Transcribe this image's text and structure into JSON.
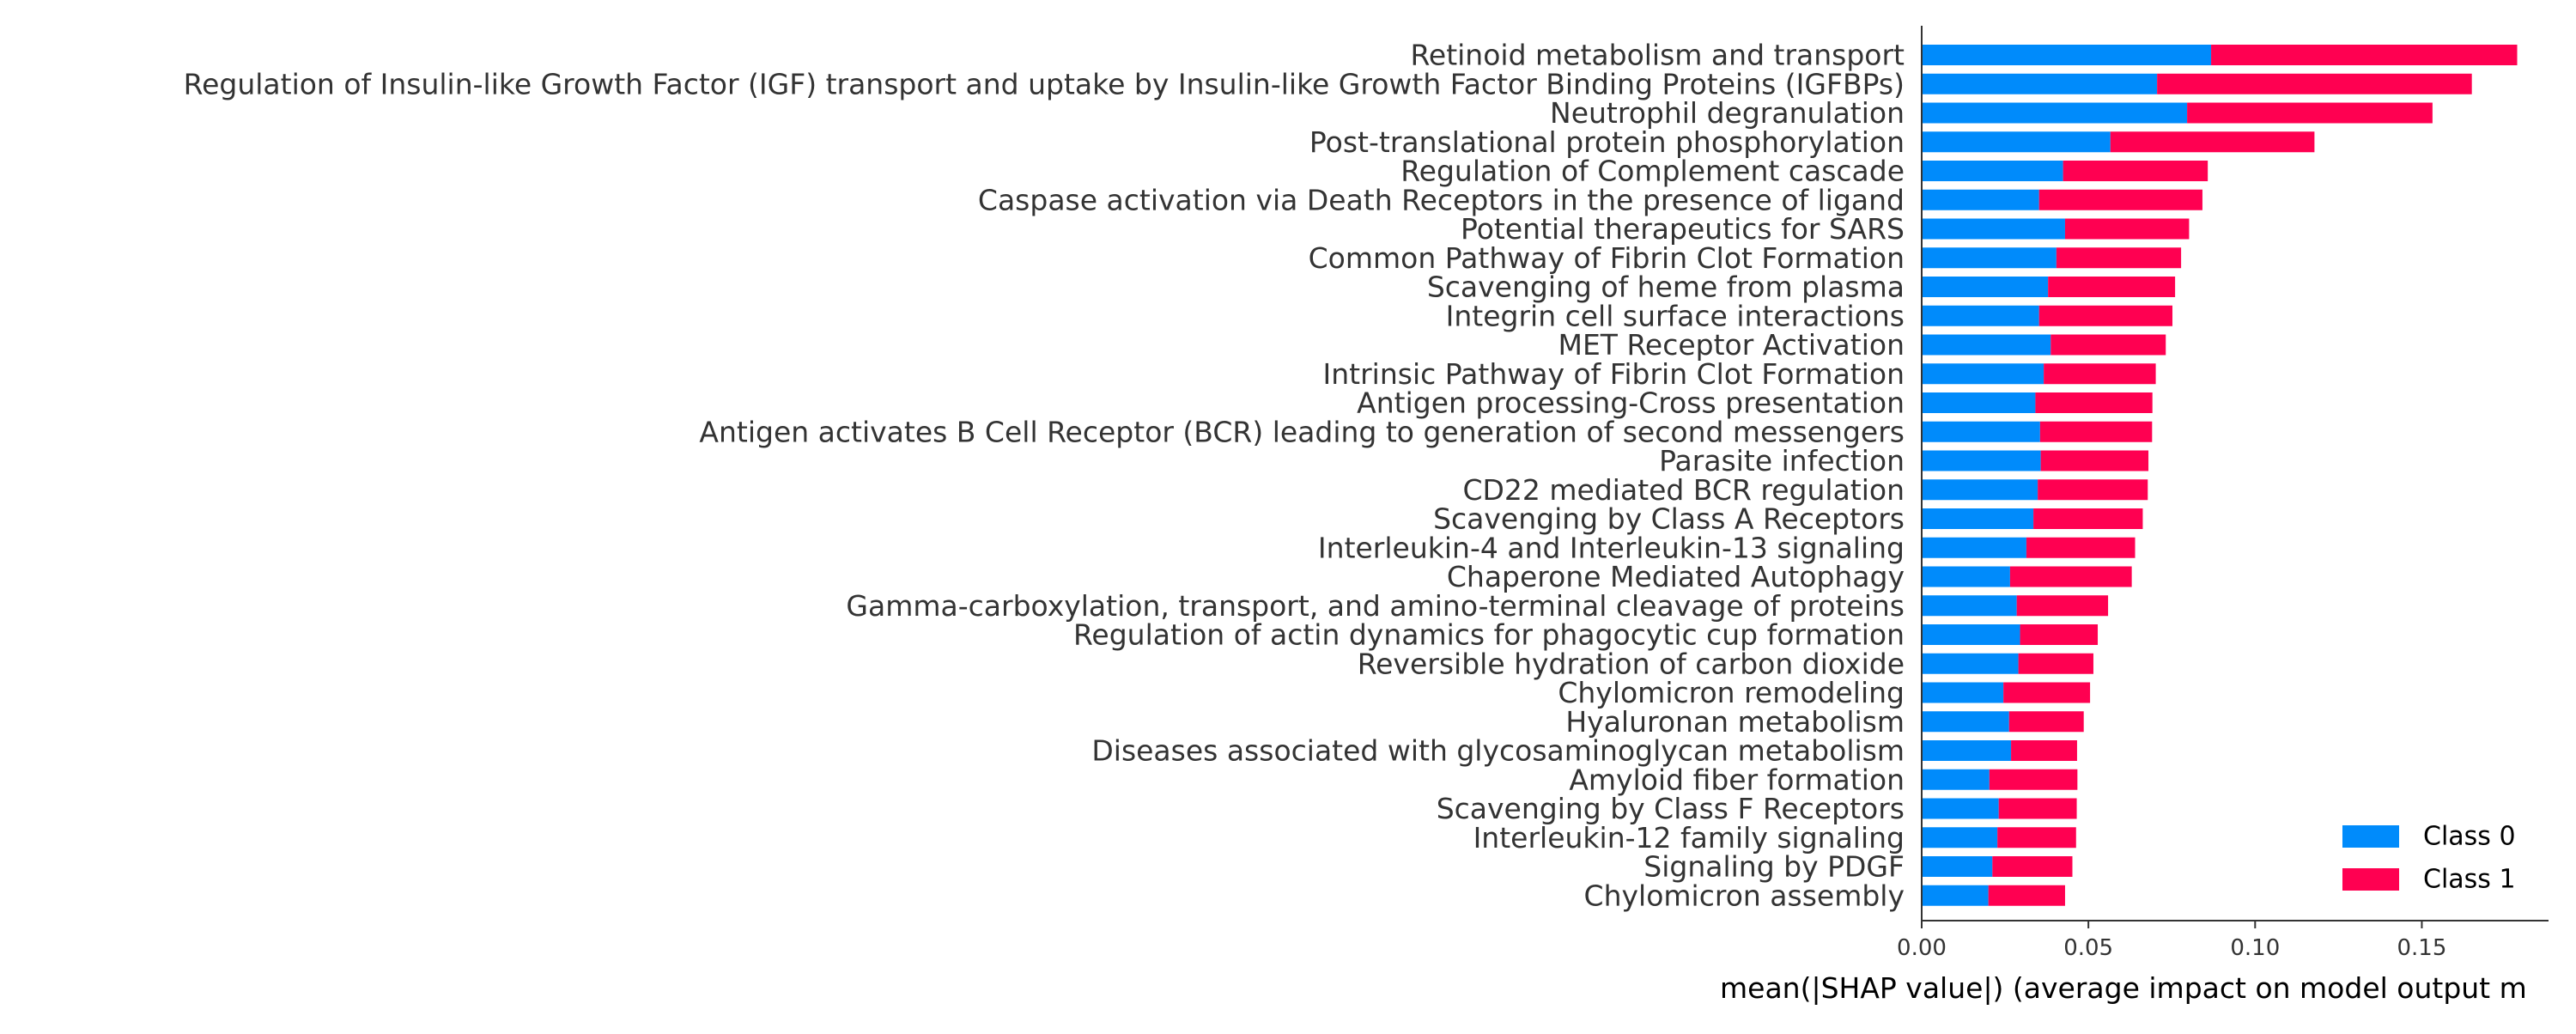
{
  "chart_data": {
    "type": "bar",
    "orientation": "horizontal",
    "stacked": true,
    "categories": [
      "Retinoid metabolism and transport",
      "Regulation of Insulin-like Growth Factor (IGF) transport and uptake by Insulin-like Growth Factor Binding Proteins (IGFBPs)",
      "Neutrophil degranulation",
      "Post-translational protein phosphorylation",
      "Regulation of Complement cascade",
      "Caspase activation via Death Receptors in the presence of ligand",
      "Potential therapeutics for SARS",
      "Common Pathway of Fibrin Clot Formation",
      "Scavenging of heme from plasma",
      "Integrin cell surface interactions",
      "MET Receptor Activation",
      "Intrinsic Pathway of Fibrin Clot Formation",
      "Antigen processing-Cross presentation",
      "Antigen activates B Cell Receptor (BCR) leading to generation of second messengers",
      "Parasite infection",
      "CD22 mediated BCR regulation",
      "Scavenging by Class A Receptors",
      "Interleukin-4 and Interleukin-13 signaling",
      "Chaperone Mediated Autophagy",
      "Gamma-carboxylation, transport, and amino-terminal cleavage of proteins",
      "Regulation of actin dynamics for phagocytic cup formation",
      "Reversible hydration of carbon dioxide",
      "Chylomicron remodeling",
      "Hyaluronan metabolism",
      "Diseases associated with glycosaminoglycan metabolism",
      "Amyloid fiber formation",
      "Scavenging by Class F Receptors",
      "Interleukin-12 family signaling",
      "Signaling by PDGF",
      "Chylomicron assembly"
    ],
    "series": [
      {
        "name": "Class 0",
        "color": "#008bfb",
        "values": [
          0.0868,
          0.0706,
          0.0796,
          0.0566,
          0.0424,
          0.0352,
          0.043,
          0.0404,
          0.0379,
          0.0352,
          0.0387,
          0.0366,
          0.0341,
          0.0355,
          0.0357,
          0.0348,
          0.0335,
          0.0314,
          0.0265,
          0.0285,
          0.0295,
          0.029,
          0.0245,
          0.0262,
          0.0268,
          0.0203,
          0.0231,
          0.0227,
          0.0212,
          0.02
        ]
      },
      {
        "name": "Class 1",
        "color": "#ff0051",
        "values": [
          0.0918,
          0.0944,
          0.0736,
          0.0612,
          0.0434,
          0.049,
          0.0372,
          0.0374,
          0.0381,
          0.04,
          0.0345,
          0.0336,
          0.0351,
          0.0336,
          0.0323,
          0.033,
          0.0328,
          0.0326,
          0.0365,
          0.0274,
          0.0233,
          0.0225,
          0.026,
          0.0224,
          0.0198,
          0.0264,
          0.0234,
          0.0236,
          0.024,
          0.023
        ]
      }
    ],
    "xlabel": "mean(|SHAP value|) (average impact on model output m",
    "ylabel": "",
    "title": "",
    "xlim": [
      0,
      0.188
    ],
    "xticks": [
      "0.00",
      "0.05",
      "0.10",
      "0.15"
    ],
    "xtick_values": [
      0,
      0.05,
      0.1,
      0.15
    ],
    "legend_position": "bottom-right",
    "grid": false
  }
}
